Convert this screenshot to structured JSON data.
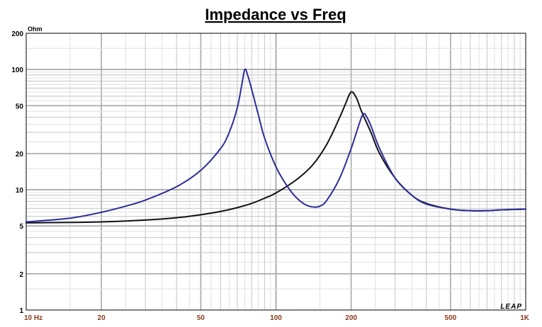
{
  "chart_data": {
    "type": "line",
    "title": "Impedance vs Freq",
    "ylabel": "Ohm",
    "xscale": "log",
    "yscale": "log",
    "xlim": [
      10,
      1000
    ],
    "ylim": [
      1,
      200
    ],
    "grid": true,
    "x_ticks": [
      {
        "value": 10,
        "label": "10  Hz"
      },
      {
        "value": 20,
        "label": "20"
      },
      {
        "value": 50,
        "label": "50"
      },
      {
        "value": 100,
        "label": "100"
      },
      {
        "value": 200,
        "label": "200"
      },
      {
        "value": 500,
        "label": "500"
      },
      {
        "value": 1000,
        "label": "1K"
      }
    ],
    "y_ticks": [
      {
        "value": 1,
        "label": "1"
      },
      {
        "value": 2,
        "label": "2"
      },
      {
        "value": 5,
        "label": "5"
      },
      {
        "value": 10,
        "label": "10"
      },
      {
        "value": 20,
        "label": "20"
      },
      {
        "value": 50,
        "label": "50"
      },
      {
        "value": 100,
        "label": "100"
      },
      {
        "value": 200,
        "label": "200"
      }
    ],
    "watermark": "LEAP",
    "series": [
      {
        "color": "#10101a",
        "x": [
          10,
          15,
          20,
          30,
          40,
          50,
          60,
          70,
          80,
          90,
          100,
          120,
          140,
          160,
          180,
          190,
          200,
          210,
          220,
          240,
          260,
          300,
          350,
          400,
          500,
          600,
          700,
          800,
          1000
        ],
        "y": [
          5.3,
          5.35,
          5.4,
          5.6,
          5.85,
          6.2,
          6.6,
          7.1,
          7.7,
          8.5,
          9.4,
          12,
          16,
          24,
          40,
          52,
          65,
          58,
          45,
          30,
          20,
          12.5,
          9,
          7.7,
          6.9,
          6.7,
          6.7,
          6.8,
          6.9
        ]
      },
      {
        "color": "#2d2d9a",
        "x": [
          10,
          15,
          20,
          25,
          30,
          40,
          50,
          60,
          65,
          70,
          73,
          75,
          77,
          80,
          85,
          90,
          100,
          110,
          120,
          130,
          140,
          150,
          160,
          180,
          200,
          210,
          220,
          225,
          230,
          240,
          260,
          300,
          350,
          400,
          500,
          600,
          700,
          800,
          1000
        ],
        "y": [
          5.4,
          5.8,
          6.5,
          7.3,
          8.2,
          10.6,
          14.5,
          22,
          30,
          48,
          75,
          100,
          90,
          68,
          42,
          27,
          15.5,
          11,
          8.7,
          7.6,
          7.2,
          7.3,
          8.2,
          12.5,
          22,
          30,
          40,
          43,
          41,
          34,
          22,
          12.5,
          9,
          7.6,
          6.9,
          6.7,
          6.7,
          6.8,
          6.9
        ]
      }
    ]
  }
}
